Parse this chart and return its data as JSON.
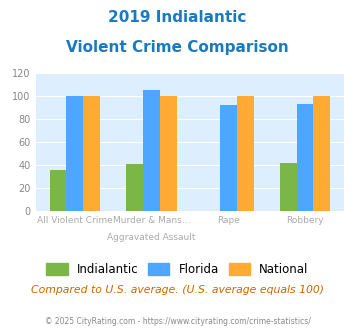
{
  "title_line1": "2019 Indialantic",
  "title_line2": "Violent Crime Comparison",
  "x_labels_top": [
    "",
    "Murder & Mans...",
    "",
    ""
  ],
  "x_labels_bottom": [
    "All Violent Crime",
    "Aggravated Assault",
    "Rape",
    "Robbery"
  ],
  "indialantic": [
    36,
    41,
    0,
    42
  ],
  "florida": [
    100,
    105,
    92,
    93
  ],
  "national": [
    100,
    100,
    100,
    100
  ],
  "color_indialantic": "#7ab648",
  "color_florida": "#4da6ff",
  "color_national": "#ffaa33",
  "ylim": [
    0,
    120
  ],
  "yticks": [
    0,
    20,
    40,
    60,
    80,
    100,
    120
  ],
  "bg_color": "#ddeeff",
  "title_color": "#1a7abf",
  "subtitle_note": "Compared to U.S. average. (U.S. average equals 100)",
  "footnote": "© 2025 CityRating.com - https://www.cityrating.com/crime-statistics/",
  "subtitle_color": "#cc6600",
  "footnote_color": "#888888",
  "label_color": "#aaaaaa"
}
